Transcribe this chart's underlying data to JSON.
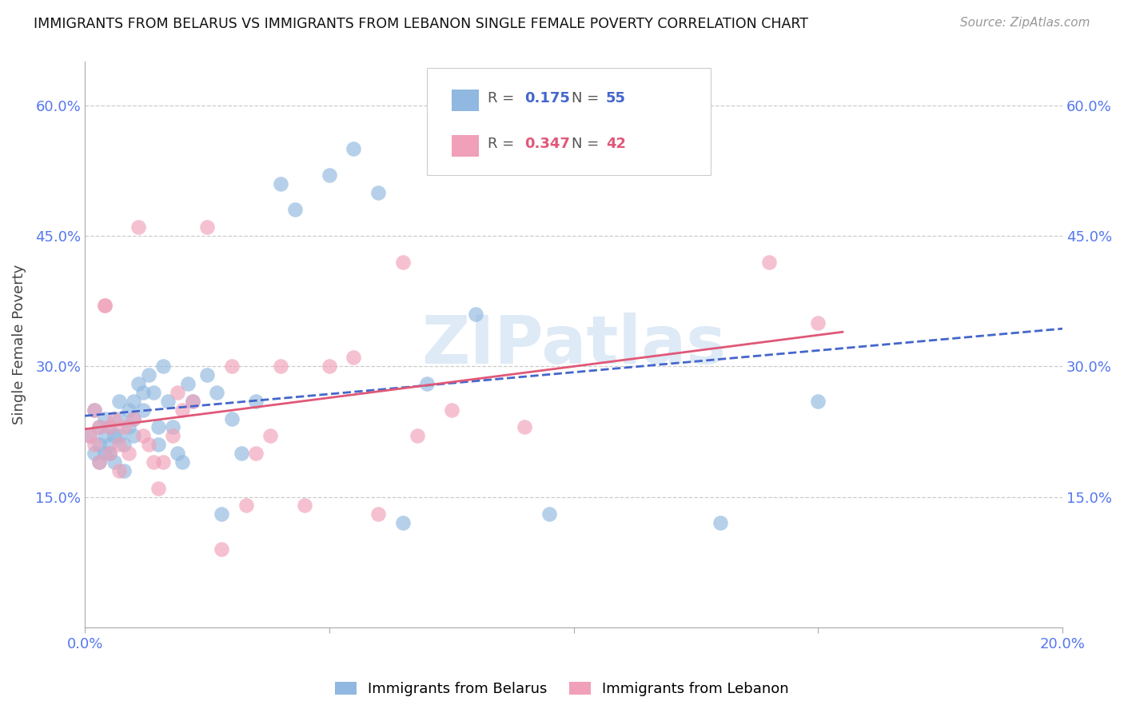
{
  "title": "IMMIGRANTS FROM BELARUS VS IMMIGRANTS FROM LEBANON SINGLE FEMALE POVERTY CORRELATION CHART",
  "source": "Source: ZipAtlas.com",
  "ylabel": "Single Female Poverty",
  "xlim": [
    0.0,
    0.2
  ],
  "ylim": [
    0.0,
    0.65
  ],
  "yticks": [
    0.0,
    0.15,
    0.3,
    0.45,
    0.6
  ],
  "ytick_labels_left": [
    "",
    "15.0%",
    "30.0%",
    "45.0%",
    "60.0%"
  ],
  "ytick_labels_right": [
    "",
    "15.0%",
    "30.0%",
    "45.0%",
    "60.0%"
  ],
  "xticks": [
    0.0,
    0.05,
    0.1,
    0.15,
    0.2
  ],
  "xtick_labels": [
    "0.0%",
    "",
    "",
    "",
    "20.0%"
  ],
  "belarus_R": "0.175",
  "belarus_N": "55",
  "lebanon_R": "0.347",
  "lebanon_N": "42",
  "belarus_color": "#90b8e0",
  "lebanon_color": "#f0a0b8",
  "trend_belarus_color": "#4466cc",
  "trend_lebanon_color": "#e05878",
  "watermark": "ZIPatlas",
  "background_color": "#ffffff",
  "grid_color": "#cccccc",
  "axis_color": "#5577ee",
  "belarus_x": [
    0.001,
    0.002,
    0.002,
    0.003,
    0.003,
    0.003,
    0.004,
    0.004,
    0.004,
    0.005,
    0.005,
    0.005,
    0.006,
    0.006,
    0.007,
    0.007,
    0.007,
    0.008,
    0.008,
    0.009,
    0.009,
    0.01,
    0.01,
    0.01,
    0.011,
    0.012,
    0.012,
    0.013,
    0.014,
    0.015,
    0.015,
    0.016,
    0.017,
    0.018,
    0.019,
    0.02,
    0.021,
    0.022,
    0.025,
    0.027,
    0.028,
    0.03,
    0.032,
    0.035,
    0.04,
    0.043,
    0.05,
    0.055,
    0.06,
    0.065,
    0.07,
    0.08,
    0.095,
    0.13,
    0.15
  ],
  "belarus_y": [
    0.22,
    0.25,
    0.2,
    0.23,
    0.21,
    0.19,
    0.24,
    0.22,
    0.2,
    0.23,
    0.21,
    0.2,
    0.22,
    0.19,
    0.26,
    0.24,
    0.22,
    0.21,
    0.18,
    0.25,
    0.23,
    0.26,
    0.24,
    0.22,
    0.28,
    0.27,
    0.25,
    0.29,
    0.27,
    0.23,
    0.21,
    0.3,
    0.26,
    0.23,
    0.2,
    0.19,
    0.28,
    0.26,
    0.29,
    0.27,
    0.13,
    0.24,
    0.2,
    0.26,
    0.51,
    0.48,
    0.52,
    0.55,
    0.5,
    0.12,
    0.28,
    0.36,
    0.13,
    0.12,
    0.26
  ],
  "lebanon_x": [
    0.001,
    0.002,
    0.002,
    0.003,
    0.003,
    0.004,
    0.004,
    0.005,
    0.005,
    0.006,
    0.007,
    0.007,
    0.008,
    0.009,
    0.01,
    0.011,
    0.012,
    0.013,
    0.014,
    0.015,
    0.016,
    0.018,
    0.019,
    0.02,
    0.022,
    0.025,
    0.028,
    0.03,
    0.033,
    0.035,
    0.038,
    0.04,
    0.045,
    0.05,
    0.055,
    0.06,
    0.065,
    0.068,
    0.075,
    0.09,
    0.14,
    0.15
  ],
  "lebanon_y": [
    0.22,
    0.25,
    0.21,
    0.23,
    0.19,
    0.37,
    0.37,
    0.23,
    0.2,
    0.24,
    0.21,
    0.18,
    0.23,
    0.2,
    0.24,
    0.46,
    0.22,
    0.21,
    0.19,
    0.16,
    0.19,
    0.22,
    0.27,
    0.25,
    0.26,
    0.46,
    0.09,
    0.3,
    0.14,
    0.2,
    0.22,
    0.3,
    0.14,
    0.3,
    0.31,
    0.13,
    0.42,
    0.22,
    0.25,
    0.23,
    0.42,
    0.35
  ]
}
